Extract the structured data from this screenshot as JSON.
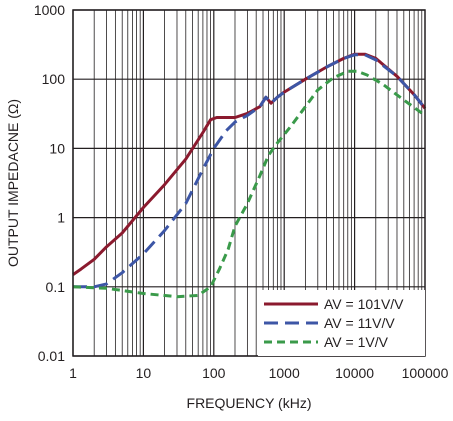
{
  "chart_data": {
    "type": "line",
    "xlabel": "FREQUENCY (kHz)",
    "ylabel": "OUTPUT IMPEDACNE (Ω)",
    "x_scale": "log",
    "y_scale": "log",
    "xlim": [
      1,
      100000
    ],
    "ylim": [
      0.01,
      1000
    ],
    "grid": true,
    "legend_position": "bottom-right",
    "x_ticks": [
      "1",
      "10",
      "100",
      "1000",
      "10000",
      "100000"
    ],
    "y_ticks": [
      "0.01",
      "0.1",
      "1",
      "10",
      "100",
      "1000"
    ],
    "series": [
      {
        "name": "AV = 101V/V",
        "color": "#8b1a2e",
        "dash": "solid",
        "points": [
          [
            1,
            0.15
          ],
          [
            1.3,
            0.18
          ],
          [
            2,
            0.25
          ],
          [
            3,
            0.38
          ],
          [
            5,
            0.6
          ],
          [
            10,
            1.4
          ],
          [
            20,
            3.0
          ],
          [
            40,
            7.0
          ],
          [
            70,
            17
          ],
          [
            90,
            26
          ],
          [
            110,
            28
          ],
          [
            150,
            28
          ],
          [
            200,
            28
          ],
          [
            300,
            32
          ],
          [
            450,
            40
          ],
          [
            550,
            55
          ],
          [
            650,
            45
          ],
          [
            800,
            55
          ],
          [
            1000,
            65
          ],
          [
            2000,
            100
          ],
          [
            4000,
            150
          ],
          [
            7000,
            200
          ],
          [
            10000,
            230
          ],
          [
            14000,
            230
          ],
          [
            20000,
            200
          ],
          [
            40000,
            110
          ],
          [
            70000,
            60
          ],
          [
            100000,
            38
          ]
        ]
      },
      {
        "name": "AV = 11V/V",
        "color": "#3d56a6",
        "dash": "long-dash",
        "points": [
          [
            1,
            0.1
          ],
          [
            2,
            0.1
          ],
          [
            3,
            0.11
          ],
          [
            5,
            0.16
          ],
          [
            10,
            0.3
          ],
          [
            20,
            0.65
          ],
          [
            40,
            1.6
          ],
          [
            70,
            5
          ],
          [
            100,
            10
          ],
          [
            150,
            18
          ],
          [
            200,
            24
          ],
          [
            300,
            30
          ],
          [
            450,
            40
          ],
          [
            550,
            55
          ],
          [
            650,
            45
          ],
          [
            800,
            55
          ],
          [
            1000,
            65
          ],
          [
            2000,
            100
          ],
          [
            4000,
            150
          ],
          [
            7000,
            200
          ],
          [
            10000,
            225
          ],
          [
            14000,
            225
          ],
          [
            20000,
            190
          ],
          [
            40000,
            110
          ],
          [
            70000,
            60
          ],
          [
            100000,
            38
          ]
        ]
      },
      {
        "name": "AV = 1V/V",
        "color": "#3a9a4a",
        "dash": "short-dash",
        "points": [
          [
            1,
            0.1
          ],
          [
            3,
            0.095
          ],
          [
            10,
            0.08
          ],
          [
            30,
            0.072
          ],
          [
            60,
            0.075
          ],
          [
            90,
            0.1
          ],
          [
            120,
            0.18
          ],
          [
            160,
            0.35
          ],
          [
            200,
            0.75
          ],
          [
            300,
            1.6
          ],
          [
            450,
            4
          ],
          [
            600,
            8
          ],
          [
            800,
            12
          ],
          [
            1200,
            20
          ],
          [
            2000,
            40
          ],
          [
            3000,
            70
          ],
          [
            5000,
            105
          ],
          [
            8000,
            130
          ],
          [
            11000,
            130
          ],
          [
            15000,
            115
          ],
          [
            25000,
            85
          ],
          [
            50000,
            50
          ],
          [
            100000,
            30
          ]
        ]
      }
    ]
  }
}
